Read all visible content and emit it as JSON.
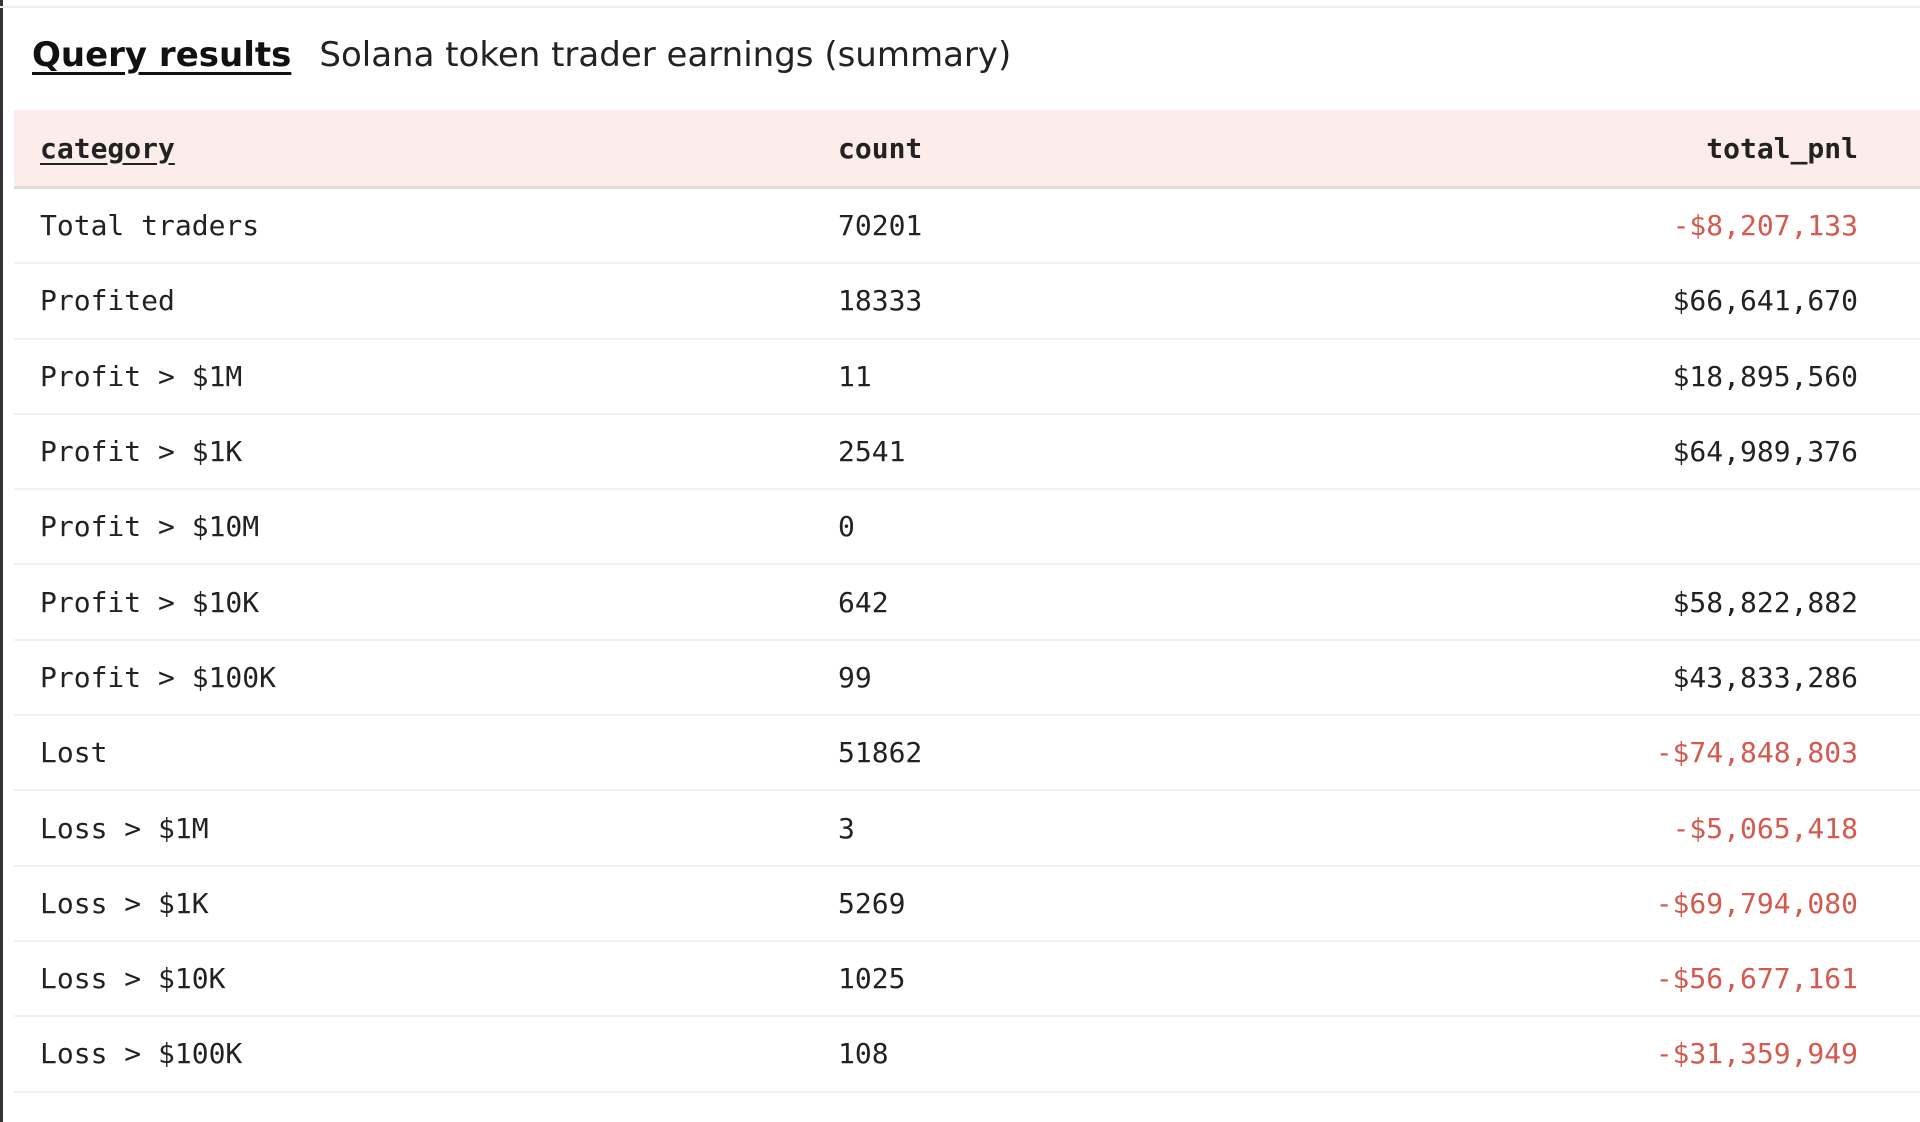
{
  "header": {
    "link": "Query results",
    "title": "Solana token trader earnings (summary)"
  },
  "table": {
    "columns": [
      "category",
      "count",
      "total_pnl"
    ],
    "rows": [
      {
        "category": "Total traders",
        "count": "70201",
        "total_pnl": "-$8,207,133"
      },
      {
        "category": "Profited",
        "count": "18333",
        "total_pnl": "$66,641,670"
      },
      {
        "category": "Profit > $1M",
        "count": "11",
        "total_pnl": "$18,895,560"
      },
      {
        "category": "Profit > $1K",
        "count": "2541",
        "total_pnl": "$64,989,376"
      },
      {
        "category": "Profit > $10M",
        "count": "0",
        "total_pnl": ""
      },
      {
        "category": "Profit > $10K",
        "count": "642",
        "total_pnl": "$58,822,882"
      },
      {
        "category": "Profit > $100K",
        "count": "99",
        "total_pnl": "$43,833,286"
      },
      {
        "category": "Lost",
        "count": "51862",
        "total_pnl": "-$74,848,803"
      },
      {
        "category": "Loss > $1M",
        "count": "3",
        "total_pnl": "-$5,065,418"
      },
      {
        "category": "Loss > $1K",
        "count": "5269",
        "total_pnl": "-$69,794,080"
      },
      {
        "category": "Loss > $10K",
        "count": "1025",
        "total_pnl": "-$56,677,161"
      },
      {
        "category": "Loss > $100K",
        "count": "108",
        "total_pnl": "-$31,359,949"
      }
    ]
  },
  "colors": {
    "negative": "#d4594e",
    "header_bg": "#fcecea"
  }
}
